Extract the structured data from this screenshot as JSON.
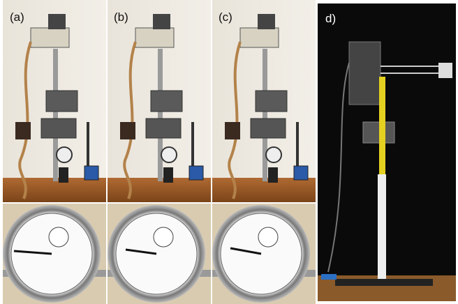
{
  "panels": [
    {
      "label": "(a)"
    },
    {
      "label": "(b)"
    },
    {
      "label": "(c)"
    },
    {
      "label": "d)"
    }
  ]
}
